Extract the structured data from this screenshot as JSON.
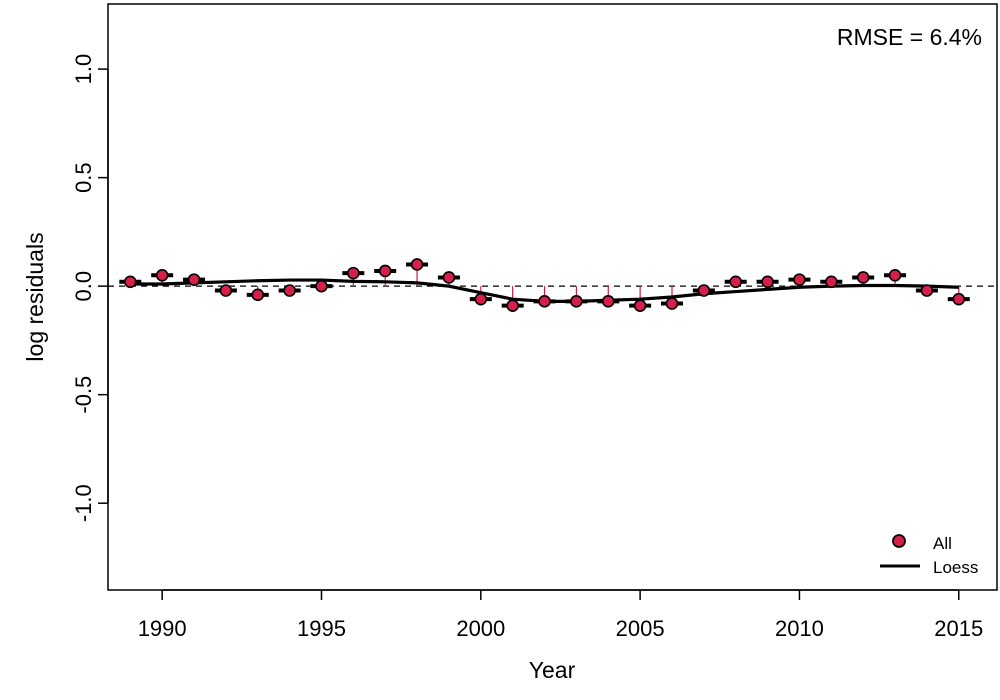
{
  "chart_data": {
    "type": "scatter",
    "title": "",
    "xlabel": "Year",
    "ylabel": "log residuals",
    "xlim": [
      1988.3,
      2016.2
    ],
    "ylim": [
      -1.4,
      1.3
    ],
    "xticks": [
      1990,
      1995,
      2000,
      2005,
      2010,
      2015
    ],
    "yticks": [
      -1.0,
      -0.5,
      0.0,
      0.5,
      1.0
    ],
    "xtick_labels": [
      "1990",
      "1995",
      "2000",
      "2005",
      "2010",
      "2015"
    ],
    "ytick_labels": [
      "-1.0",
      "-0.5",
      "0.0",
      "0.5",
      "1.0"
    ],
    "annotation": "RMSE = 6.4%",
    "legend_position": "bottom-right",
    "reference_line": 0,
    "series": [
      {
        "name": "All",
        "style": "points",
        "color": "#d6204a",
        "x": [
          1989,
          1990,
          1991,
          1992,
          1993,
          1994,
          1995,
          1996,
          1997,
          1998,
          1999,
          2000,
          2001,
          2002,
          2003,
          2004,
          2005,
          2006,
          2007,
          2008,
          2009,
          2010,
          2011,
          2012,
          2013,
          2014,
          2015
        ],
        "y": [
          0.02,
          0.05,
          0.03,
          -0.02,
          -0.04,
          -0.02,
          0.0,
          0.06,
          0.07,
          0.1,
          0.04,
          -0.06,
          -0.09,
          -0.07,
          -0.07,
          -0.07,
          -0.09,
          -0.08,
          -0.02,
          0.02,
          0.02,
          0.03,
          0.02,
          0.04,
          0.05,
          -0.02,
          -0.06
        ]
      },
      {
        "name": "Loess",
        "style": "line",
        "color": "#000000",
        "x": [
          1989,
          1990,
          1991,
          1992,
          1993,
          1994,
          1995,
          1996,
          1997,
          1998,
          1999,
          2000,
          2001,
          2002,
          2003,
          2004,
          2005,
          2006,
          2007,
          2008,
          2009,
          2010,
          2011,
          2012,
          2013,
          2014,
          2015
        ],
        "y": [
          0.01,
          0.01,
          0.015,
          0.02,
          0.025,
          0.028,
          0.028,
          0.022,
          0.02,
          0.015,
          0.0,
          -0.03,
          -0.06,
          -0.07,
          -0.07,
          -0.065,
          -0.06,
          -0.05,
          -0.035,
          -0.025,
          -0.015,
          -0.005,
          0.0,
          0.003,
          0.003,
          0.0,
          -0.005
        ]
      }
    ]
  },
  "colors": {
    "point_fill": "#d6204a",
    "point_stroke": "#000000",
    "residual_stem": "#c41e4a",
    "loess": "#000000"
  }
}
